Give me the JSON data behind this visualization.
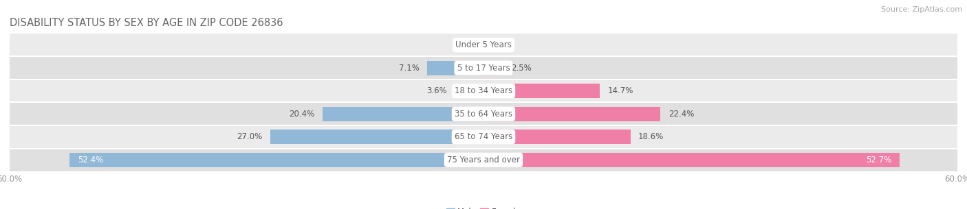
{
  "title": "Disability Status by Sex by Age in Zip Code 26836",
  "source": "Source: ZipAtlas.com",
  "categories": [
    "Under 5 Years",
    "5 to 17 Years",
    "18 to 34 Years",
    "35 to 64 Years",
    "65 to 74 Years",
    "75 Years and over"
  ],
  "male_values": [
    0.0,
    7.1,
    3.6,
    20.4,
    27.0,
    52.4
  ],
  "female_values": [
    0.0,
    2.5,
    14.7,
    22.4,
    18.6,
    52.7
  ],
  "male_color": "#92b8d8",
  "female_color": "#f07fa8",
  "row_bg_colors": [
    "#ebebeb",
    "#e0e0e0"
  ],
  "xlim": 60.0,
  "bar_height": 0.62,
  "label_fontsize": 8.5,
  "title_fontsize": 10.5,
  "source_fontsize": 8.0,
  "axis_tick_color": "#999999",
  "text_dark": "#555555",
  "center_label_color": "#666666",
  "white": "#ffffff"
}
